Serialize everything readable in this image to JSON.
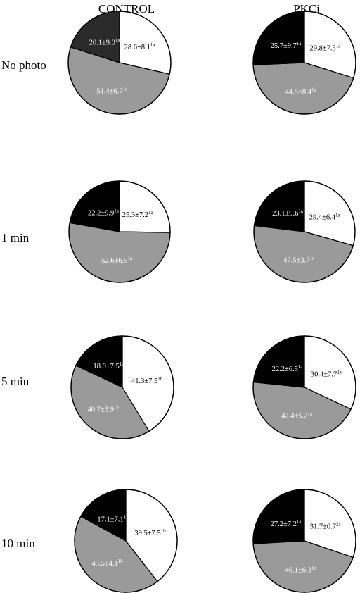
{
  "columns": [
    "CONTROL",
    "PKCi"
  ],
  "rows": [
    "No photo",
    "1 min",
    "5 min",
    "10 min"
  ],
  "colors": {
    "white": "#ffffff",
    "gray": "#9a9a9a",
    "black": "#000000",
    "dark": "#2a2a2a",
    "outline": "#000000"
  },
  "chart_data": [
    {
      "type": "pie",
      "column": "CONTROL",
      "row": "No photo",
      "slices": [
        {
          "value": 28.6,
          "label": "28.6±8.1",
          "sup": "1a",
          "color": "white"
        },
        {
          "value": 51.4,
          "label": "51.4±6.7",
          "sup": "1a",
          "color": "gray"
        },
        {
          "value": 20.1,
          "label": "20.1±9.0",
          "sup": "1a",
          "color": "dark"
        }
      ]
    },
    {
      "type": "pie",
      "column": "PKCi",
      "row": "No photo",
      "slices": [
        {
          "value": 29.8,
          "label": "29.8±7.5",
          "sup": "1a",
          "color": "white"
        },
        {
          "value": 44.5,
          "label": "44.5±8.4",
          "sup": "1a",
          "color": "gray"
        },
        {
          "value": 25.7,
          "label": "25.7±9.7",
          "sup": "1a",
          "color": "black"
        }
      ]
    },
    {
      "type": "pie",
      "column": "CONTROL",
      "row": "1 min",
      "slices": [
        {
          "value": 25.3,
          "label": "25.3±7.2",
          "sup": "1a",
          "color": "white"
        },
        {
          "value": 52.6,
          "label": "52.6±6.5",
          "sup": "1a",
          "color": "gray"
        },
        {
          "value": 22.2,
          "label": "22.2±9.9",
          "sup": "1a",
          "color": "black"
        }
      ]
    },
    {
      "type": "pie",
      "column": "PKCi",
      "row": "1 min",
      "slices": [
        {
          "value": 29.4,
          "label": "29.4±6.4",
          "sup": "1a",
          "color": "white"
        },
        {
          "value": 47.5,
          "label": "47.5±3.7",
          "sup": "1a",
          "color": "gray"
        },
        {
          "value": 23.1,
          "label": "23.1±9.6",
          "sup": "1a",
          "color": "black"
        }
      ]
    },
    {
      "type": "pie",
      "column": "CONTROL",
      "row": "5 min",
      "slices": [
        {
          "value": 41.3,
          "label": "41.3±7.5",
          "sup": "1b",
          "color": "white"
        },
        {
          "value": 40.7,
          "label": "40.7±3.9",
          "sup": "1b",
          "color": "gray"
        },
        {
          "value": 18.0,
          "label": "18.0±7.5",
          "sup": "1a",
          "color": "black"
        }
      ]
    },
    {
      "type": "pie",
      "column": "PKCi",
      "row": "5 min",
      "slices": [
        {
          "value": 30.4,
          "label": "30.4±7.7",
          "sup": "2a",
          "color": "white"
        },
        {
          "value": 42.4,
          "label": "42.4±5.2",
          "sup": "1a",
          "color": "gray"
        },
        {
          "value": 22.2,
          "label": "22.2±6.5",
          "sup": "1a",
          "color": "black"
        }
      ]
    },
    {
      "type": "pie",
      "column": "CONTROL",
      "row": "10 min",
      "slices": [
        {
          "value": 39.5,
          "label": "39.5±7.5",
          "sup": "1b",
          "color": "white"
        },
        {
          "value": 43.5,
          "label": "43.5±4.1",
          "sup": "1b",
          "color": "gray"
        },
        {
          "value": 17.1,
          "label": "17.1±7.1",
          "sup": "1a",
          "color": "black"
        }
      ]
    },
    {
      "type": "pie",
      "column": "PKCi",
      "row": "10 min",
      "slices": [
        {
          "value": 31.7,
          "label": "31.7±0.7",
          "sup": "2a",
          "color": "white"
        },
        {
          "value": 46.1,
          "label": "46.1±6.3",
          "sup": "1a",
          "color": "gray"
        },
        {
          "value": 27.2,
          "label": "27.2±7.2",
          "sup": "1a",
          "color": "black"
        }
      ]
    }
  ]
}
